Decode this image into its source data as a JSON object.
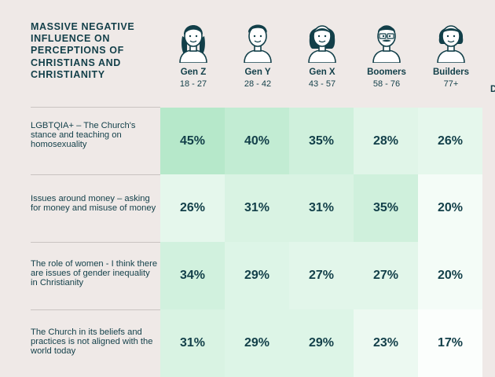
{
  "chart_data": {
    "type": "table",
    "title": "MASSIVE NEGATIVE INFLUENCE ON PERCEPTIONS OF CHRISTIANS AND CHRISTIANITY",
    "columns": [
      {
        "name": "Gen Z",
        "range": "18 - 27"
      },
      {
        "name": "Gen Y",
        "range": "28 - 42"
      },
      {
        "name": "Gen X",
        "range": "43 - 57"
      },
      {
        "name": "Boomers",
        "range": "58 - 76"
      },
      {
        "name": "Builders",
        "range": "77+"
      }
    ],
    "truncated_next_column_initial": "D",
    "rows": [
      {
        "label": "LGBTQIA+ – The Church's stance and teaching on homosexuality",
        "values": [
          "45%",
          "40%",
          "35%",
          "28%",
          "26%"
        ],
        "numbers": [
          45,
          40,
          35,
          28,
          26
        ]
      },
      {
        "label": "Issues around money – asking for money and misuse of money",
        "values": [
          "26%",
          "31%",
          "31%",
          "35%",
          "20%"
        ],
        "numbers": [
          26,
          31,
          31,
          35,
          20
        ]
      },
      {
        "label": "The role of women - I think there are issues of gender inequality in Christianity",
        "values": [
          "34%",
          "29%",
          "27%",
          "27%",
          "20%"
        ],
        "numbers": [
          34,
          29,
          27,
          27,
          20
        ]
      },
      {
        "label": "The Church in its beliefs and practices is not aligned with the world today",
        "values": [
          "31%",
          "29%",
          "29%",
          "23%",
          "17%"
        ],
        "numbers": [
          31,
          29,
          29,
          23,
          17
        ]
      }
    ],
    "colors": {
      "ink": "#123f49",
      "background": "#efe9e7",
      "low": "#fbfefc",
      "high": "#b6e8ca"
    }
  }
}
